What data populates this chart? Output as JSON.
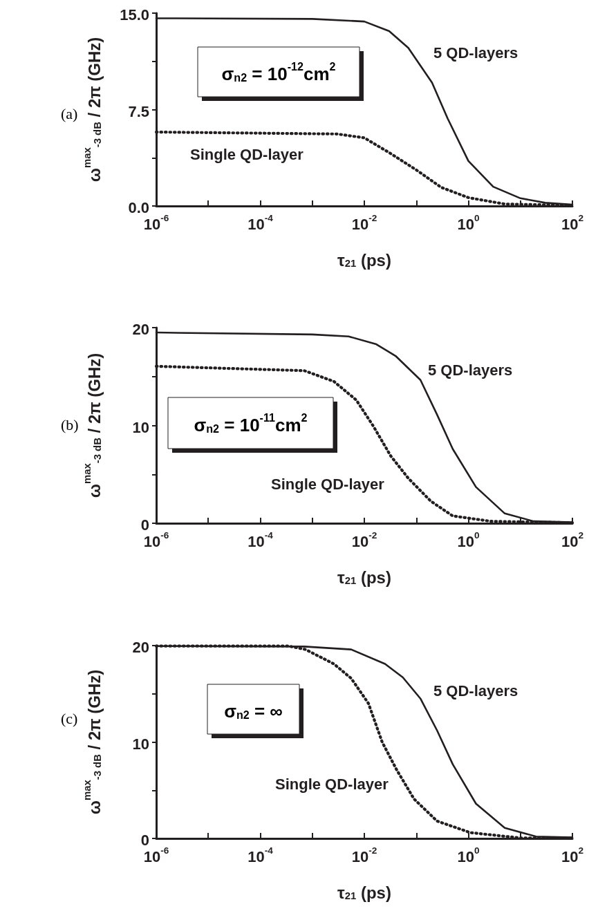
{
  "chart_data": [
    {
      "type": "line",
      "xlabel": "τ$_{21}$ (ps)",
      "ylabel": "ω$^{max}$$_{-3 dB}$ / 2π (GHz)",
      "log": "x",
      "grid": false,
      "legend": false,
      "marker": "none",
      "annotations": [
        "(a)",
        "σ$_{n2}$ = 10$^{-12}$cm$^{2}$"
      ],
      "xlim": [
        1e-06,
        100
      ],
      "ylim": [
        0,
        15
      ],
      "xticks": [
        {
          "value": 1e-06,
          "label": "10$^{-6}$"
        },
        {
          "value": 1e-05,
          "label": null
        },
        {
          "value": 0.0001,
          "label": "10$^{-4}$"
        },
        {
          "value": 0.001,
          "label": null
        },
        {
          "value": 0.01,
          "label": "10$^{-2}$"
        },
        {
          "value": 0.1,
          "label": null
        },
        {
          "value": 1,
          "label": "10$^{0}$"
        },
        {
          "value": 10,
          "label": null
        },
        {
          "value": 100,
          "label": "10$^{2}$"
        }
      ],
      "yticks": [
        {
          "value": 0,
          "label": "0.0"
        },
        {
          "value": 3.75,
          "label": null
        },
        {
          "value": 7.5,
          "label": "7.5"
        },
        {
          "value": 11.25,
          "label": null
        },
        {
          "value": 15,
          "label": "15.0"
        }
      ],
      "series": [
        {
          "name": "5 QD-layers",
          "color": "#231f20",
          "line_style": "solid",
          "x": [
            1e-06,
            0.001,
            0.01,
            0.03,
            0.07,
            0.2,
            0.4,
            1,
            3,
            10,
            30,
            100
          ],
          "values": [
            14.6,
            14.55,
            14.35,
            13.6,
            12.3,
            9.6,
            6.8,
            3.5,
            1.5,
            0.6,
            0.25,
            0.1
          ]
        },
        {
          "name": "Single QD-layer",
          "color": "#231f20",
          "line_style": "dotted",
          "x": [
            1e-06,
            0.003,
            0.01,
            0.03,
            0.1,
            0.3,
            1,
            5,
            100
          ],
          "values": [
            5.75,
            5.6,
            5.3,
            4.15,
            2.8,
            1.45,
            0.65,
            0.15,
            0.05
          ]
        }
      ]
    },
    {
      "type": "line",
      "xlabel": "τ$_{21}$ (ps)",
      "ylabel": "ω$^{max}$$_{-3 dB}$ / 2π (GHz)",
      "log": "x",
      "grid": false,
      "legend": false,
      "marker": "none",
      "annotations": [
        "(b)",
        "σ$_{n2}$ = 10$^{-11}$cm$^{2}$"
      ],
      "xlim": [
        1e-06,
        100
      ],
      "ylim": [
        0,
        20
      ],
      "xticks": [
        {
          "value": 1e-06,
          "label": "10$^{-6}$"
        },
        {
          "value": 1e-05,
          "label": null
        },
        {
          "value": 0.0001,
          "label": "10$^{-4}$"
        },
        {
          "value": 0.001,
          "label": null
        },
        {
          "value": 0.01,
          "label": "10$^{-2}$"
        },
        {
          "value": 0.1,
          "label": null
        },
        {
          "value": 1,
          "label": "10$^{0}$"
        },
        {
          "value": 10,
          "label": null
        },
        {
          "value": 100,
          "label": "10$^{2}$"
        }
      ],
      "yticks": [
        0,
        {
          "value": 5,
          "label": null
        },
        10,
        {
          "value": 15,
          "label": null
        },
        20
      ],
      "series": [
        {
          "name": "5 QD-layers",
          "color": "#231f20",
          "line_style": "solid",
          "x": [
            1e-06,
            0.001,
            0.005,
            0.017,
            0.04,
            0.12,
            0.25,
            0.5,
            1.4,
            5,
            18,
            100
          ],
          "values": [
            19.5,
            19.3,
            19.1,
            18.3,
            17.1,
            14.65,
            11.1,
            7.6,
            3.7,
            1.0,
            0.2,
            0.1
          ]
        },
        {
          "name": "Single QD-layer",
          "color": "#231f20",
          "line_style": "dotted",
          "x": [
            1e-06,
            0.0007,
            0.0026,
            0.007,
            0.015,
            0.032,
            0.07,
            0.19,
            0.5,
            2.7,
            100
          ],
          "values": [
            16.05,
            15.6,
            14.5,
            12.6,
            9.9,
            6.9,
            4.6,
            2.25,
            0.75,
            0.2,
            0.05
          ]
        }
      ]
    },
    {
      "type": "line",
      "xlabel": "τ$_{21}$ (ps)",
      "ylabel": "ω$^{max}$$_{-3 dB}$ / 2π (GHz)",
      "log": "x",
      "grid": false,
      "legend": false,
      "marker": "none",
      "annotations": [
        "(c)",
        "σ$_{n2}$ = ∞"
      ],
      "xlim": [
        1e-06,
        100
      ],
      "ylim": [
        0,
        20
      ],
      "xticks": [
        {
          "value": 1e-06,
          "label": "10$^{-6}$"
        },
        {
          "value": 1e-05,
          "label": null
        },
        {
          "value": 0.0001,
          "label": "10$^{-4}$"
        },
        {
          "value": 0.001,
          "label": null
        },
        {
          "value": 0.01,
          "label": "10$^{-2}$"
        },
        {
          "value": 0.1,
          "label": null
        },
        {
          "value": 1,
          "label": "10$^{0}$"
        },
        {
          "value": 10,
          "label": null
        },
        {
          "value": 100,
          "label": "10$^{2}$"
        }
      ],
      "yticks": [
        0,
        {
          "value": 5,
          "label": null
        },
        10,
        {
          "value": 15,
          "label": null
        },
        20
      ],
      "series": [
        {
          "name": "5 QD-layers",
          "color": "#231f20",
          "line_style": "solid",
          "x": [
            1e-06,
            0.0007,
            0.0056,
            0.025,
            0.055,
            0.12,
            0.25,
            0.5,
            1.4,
            5,
            20,
            100
          ],
          "values": [
            19.95,
            19.9,
            19.6,
            18.1,
            16.7,
            14.5,
            11.2,
            7.7,
            3.6,
            1.1,
            0.2,
            0.1
          ]
        },
        {
          "name": "Single QD-layer",
          "color": "#231f20",
          "line_style": "dotted",
          "x": [
            1e-06,
            0.00035,
            0.00074,
            0.0026,
            0.0056,
            0.012,
            0.022,
            0.042,
            0.09,
            0.25,
            1.1,
            10,
            100
          ],
          "values": [
            19.95,
            19.95,
            19.6,
            18.1,
            16.6,
            14.0,
            10.0,
            7.1,
            4.1,
            1.8,
            0.6,
            0.05,
            0.05
          ]
        }
      ]
    }
  ]
}
